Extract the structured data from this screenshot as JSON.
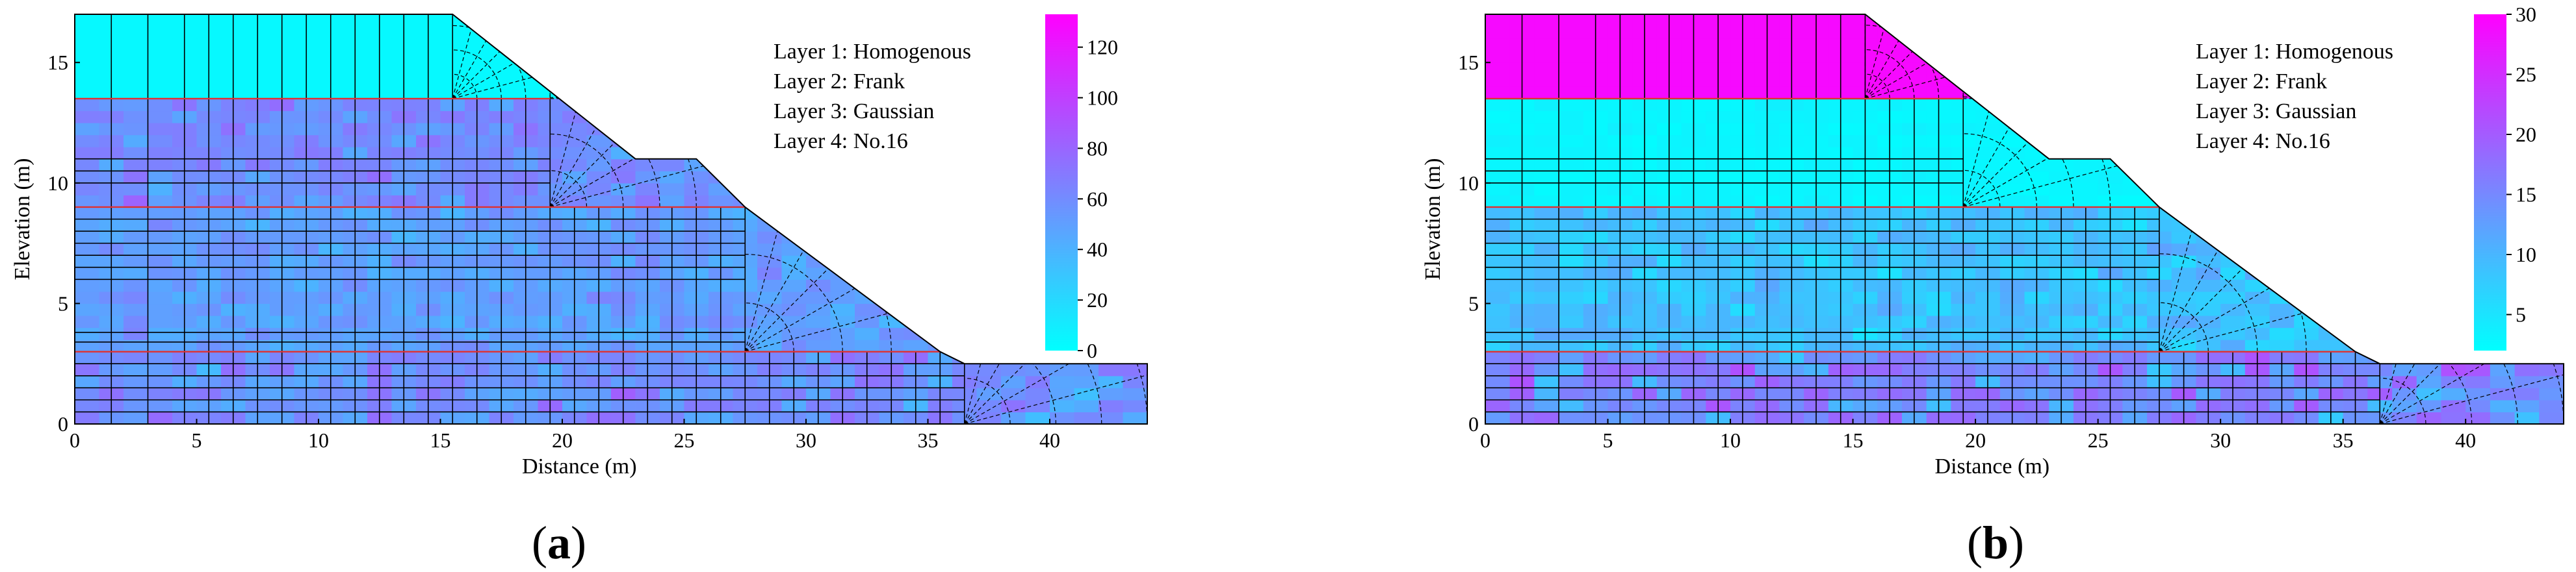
{
  "chart_data": [
    {
      "type": "heatmap",
      "caption_open": "(",
      "caption_letter": "a",
      "caption_close": ")",
      "xlabel": "Distance (m)",
      "ylabel": "Elevation (m)",
      "xlim": [
        0,
        44
      ],
      "ylim": [
        0,
        17
      ],
      "xticks": [
        0,
        5,
        10,
        15,
        20,
        25,
        30,
        35,
        40
      ],
      "yticks": [
        0,
        5,
        10,
        15
      ],
      "legend": [
        "Layer 1: Homogenous",
        "Layer 2: Frank",
        "Layer 3: Gaussian",
        "Layer 4: No.16"
      ],
      "legend_position": "top-right",
      "colorbar": {
        "min": 0,
        "max": 133,
        "ticks": [
          0,
          20,
          40,
          60,
          80,
          100,
          120
        ],
        "colormap": [
          "#00ffff",
          "#ff00ff"
        ]
      },
      "slope_profile": [
        [
          0,
          0
        ],
        [
          44,
          0
        ],
        [
          44,
          2.5
        ],
        [
          36.5,
          2.5
        ],
        [
          35.5,
          3
        ],
        [
          27.5,
          9
        ],
        [
          25.5,
          11
        ],
        [
          23,
          11
        ],
        [
          15.5,
          17
        ],
        [
          0,
          17
        ]
      ],
      "layer_boundaries": [
        3,
        9,
        13.5
      ],
      "layers": [
        {
          "name": "Layer 1: Homogenous",
          "ymin": 13.5,
          "ymax": 17,
          "mean": 3,
          "std": 0
        },
        {
          "name": "Layer 2: Frank",
          "ymin": 9,
          "ymax": 13.5,
          "mean": 60,
          "std": 12
        },
        {
          "name": "Layer 3: Gaussian",
          "ymin": 3,
          "ymax": 9,
          "mean": 50,
          "std": 10
        },
        {
          "name": "Layer 4: No.16",
          "ymin": 0,
          "ymax": 3,
          "mean": 58,
          "std": 16
        }
      ]
    },
    {
      "type": "heatmap",
      "caption_open": "(",
      "caption_letter": "b",
      "caption_close": ")",
      "xlabel": "Distance (m)",
      "ylabel": "Elevation (m)",
      "xlim": [
        0,
        44
      ],
      "ylim": [
        0,
        17
      ],
      "xticks": [
        0,
        5,
        10,
        15,
        20,
        25,
        30,
        35,
        40
      ],
      "yticks": [
        0,
        5,
        10,
        15
      ],
      "legend": [
        "Layer 1: Homogenous",
        "Layer 2: Frank",
        "Layer 3: Gaussian",
        "Layer 4: No.16"
      ],
      "legend_position": "top-right",
      "colorbar": {
        "min": 2,
        "max": 30,
        "ticks": [
          5,
          10,
          15,
          20,
          25,
          30
        ],
        "colormap": [
          "#00ffff",
          "#ff00ff"
        ]
      },
      "slope_profile": [
        [
          0,
          0
        ],
        [
          44,
          0
        ],
        [
          44,
          2.5
        ],
        [
          36.5,
          2.5
        ],
        [
          35.5,
          3
        ],
        [
          27.5,
          9
        ],
        [
          25.5,
          11
        ],
        [
          23,
          11
        ],
        [
          15.5,
          17
        ],
        [
          0,
          17
        ]
      ],
      "layer_boundaries": [
        3,
        9,
        13.5
      ],
      "layers": [
        {
          "name": "Layer 1: Homogenous",
          "ymin": 13.5,
          "ymax": 17,
          "mean": 29,
          "std": 0
        },
        {
          "name": "Layer 2: Frank",
          "ymin": 9,
          "ymax": 13.5,
          "mean": 3,
          "std": 0.5
        },
        {
          "name": "Layer 3: Gaussian",
          "ymin": 3,
          "ymax": 9,
          "mean": 9,
          "std": 2.5
        },
        {
          "name": "Layer 4: No.16",
          "ymin": 0,
          "ymax": 3,
          "mean": 15,
          "std": 5
        }
      ]
    }
  ]
}
